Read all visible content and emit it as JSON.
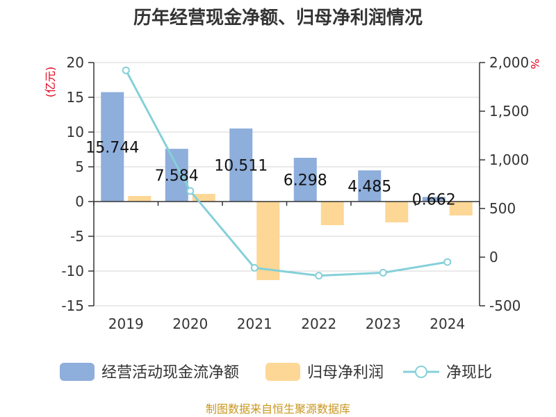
{
  "chart_data": {
    "type": "bar",
    "title": "历年经营现金净额、归母净利润情况",
    "categories": [
      "2019",
      "2020",
      "2021",
      "2022",
      "2023",
      "2024"
    ],
    "series": [
      {
        "name": "经营活动现金流净额",
        "kind": "bar",
        "axis": "left",
        "color": "#8eaedb",
        "values": [
          15.744,
          7.584,
          10.511,
          6.298,
          4.485,
          0.662
        ],
        "labels": [
          "15.744",
          "7.584",
          "10.511",
          "6.298",
          "4.485",
          "0.662"
        ]
      },
      {
        "name": "归母净利润",
        "kind": "bar",
        "axis": "left",
        "color": "#fdd795",
        "values": [
          0.8,
          1.1,
          -11.3,
          -3.4,
          -3.0,
          -2.0
        ]
      },
      {
        "name": "净现比",
        "kind": "line",
        "axis": "right",
        "color": "#85d0d9",
        "values": [
          1920,
          680,
          -110,
          -190,
          -160,
          -50
        ]
      }
    ],
    "y_left": {
      "unit": "(亿元)",
      "ylim": [
        -15,
        20
      ],
      "ticks": [
        20,
        15,
        10,
        5,
        0,
        -5,
        -10,
        -15
      ],
      "tick_labels": [
        "20",
        "15",
        "10",
        "5",
        "0",
        "-5",
        "-10",
        "-15"
      ]
    },
    "y_right": {
      "unit": "%",
      "ylim": [
        -500,
        2000
      ],
      "ticks": [
        2000,
        1500,
        1000,
        500,
        0,
        -500
      ],
      "tick_labels": [
        "2,000",
        "1,500",
        "1,000",
        "500",
        "0",
        "-500"
      ]
    },
    "grid": true,
    "legend_position": "bottom"
  },
  "source": "制图数据来自恒生聚源数据库"
}
